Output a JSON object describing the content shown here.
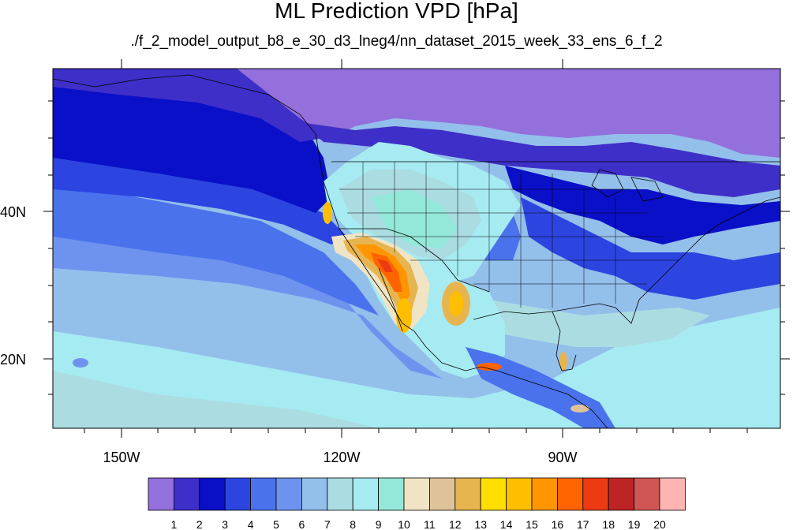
{
  "title": "ML Prediction VPD [hPa]",
  "subtitle": "./f_2_model_output_b8_e_30_d3_lneg4/nn_dataset_2015_week_33_ens_6_f_2",
  "axes": {
    "lat_labels": [
      "40N",
      "20N"
    ],
    "lon_labels": [
      "150W",
      "120W",
      "90W"
    ]
  },
  "colorbar": {
    "labels": [
      "1",
      "2",
      "3",
      "4",
      "5",
      "6",
      "7",
      "8",
      "9",
      "10",
      "11",
      "12",
      "13",
      "14",
      "15",
      "16",
      "17",
      "18",
      "19",
      "20"
    ],
    "colors": [
      "#9370db",
      "#3f2fc9",
      "#0a10c8",
      "#2c45e0",
      "#4a72ec",
      "#6e93ef",
      "#93bfeb",
      "#abdce2",
      "#a6ebf2",
      "#94e8d9",
      "#f1e4c4",
      "#e0c29a",
      "#e7b550",
      "#ffde00",
      "#ffbe00",
      "#ff9600",
      "#ff6400",
      "#ec3a12",
      "#bf2424",
      "#d05555",
      "#ffb4b4"
    ]
  },
  "palette": {
    "ocean_deep": "#9370db",
    "coast_line": "#000000"
  }
}
